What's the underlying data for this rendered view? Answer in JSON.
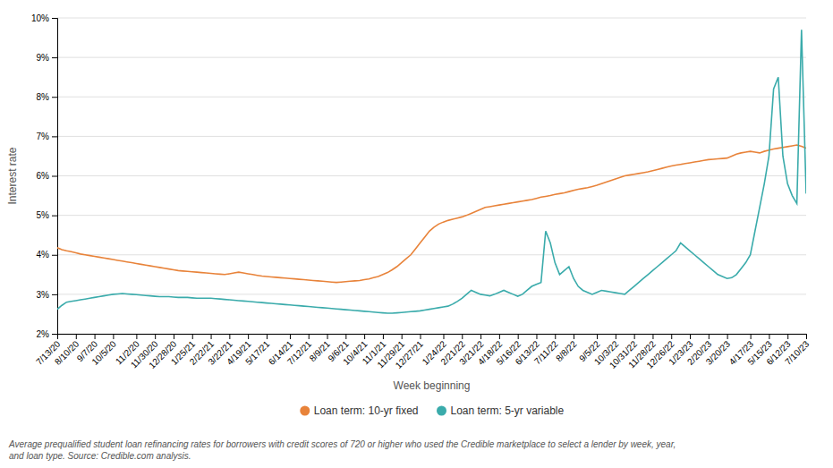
{
  "chart_data": {
    "type": "line",
    "x_label": "Week beginning",
    "y_label": "Interest rate",
    "annotations": [
      "Average prequalified student loan refinancing rates for borrowers with credit scores of 720 or higher who used the Credible marketplace to select a lender by week, year,\nand loan type. Source: Credible.com analysis."
    ],
    "categories": [
      "7/13/20",
      null,
      null,
      null,
      "8/10/20",
      null,
      null,
      null,
      "9/7/20",
      null,
      null,
      null,
      "10/5/20",
      null,
      null,
      null,
      null,
      "11/2/20",
      null,
      null,
      null,
      "11/30/20",
      null,
      null,
      null,
      "12/28/20",
      null,
      null,
      null,
      "1/25/21",
      null,
      null,
      null,
      "2/22/21",
      null,
      null,
      null,
      "3/22/21",
      null,
      null,
      null,
      "4/19/21",
      null,
      null,
      null,
      "5/17/21",
      null,
      null,
      null,
      null,
      "6/14/21",
      null,
      null,
      null,
      "7/12/21",
      null,
      null,
      null,
      "8/9/21",
      null,
      null,
      null,
      "9/6/21",
      null,
      null,
      null,
      "10/4/21",
      null,
      null,
      null,
      "11/1/21",
      null,
      null,
      null,
      "11/29/21",
      null,
      null,
      null,
      "12/27/21",
      null,
      null,
      null,
      null,
      "1/24/22",
      null,
      null,
      null,
      "2/21/22",
      null,
      null,
      null,
      "3/21/22",
      null,
      null,
      null,
      "4/18/22",
      null,
      null,
      null,
      "5/16/22",
      null,
      null,
      null,
      "6/13/22",
      null,
      null,
      null,
      "7/11/22",
      null,
      null,
      null,
      "8/8/22",
      null,
      null,
      null,
      null,
      "9/5/22",
      null,
      null,
      null,
      "10/3/22",
      null,
      null,
      null,
      "10/31/22",
      null,
      null,
      null,
      "11/28/22",
      null,
      null,
      null,
      "12/26/22",
      null,
      null,
      null,
      "1/23/23",
      null,
      null,
      null,
      "2/20/23",
      null,
      null,
      null,
      "3/20/23",
      null,
      null,
      null,
      null,
      "4/17/23",
      null,
      null,
      null,
      "5/15/23",
      null,
      null,
      null,
      "6/12/23",
      null,
      null,
      null,
      "7/10/23"
    ],
    "series": [
      {
        "name": "Loan term: 10-yr fixed",
        "color": "#e8833a",
        "values": [
          4.18,
          4.13,
          4.1,
          4.08,
          4.05,
          4.02,
          4.0,
          3.98,
          3.96,
          3.94,
          3.92,
          3.9,
          3.88,
          3.86,
          3.84,
          3.82,
          3.8,
          3.78,
          3.76,
          3.74,
          3.72,
          3.7,
          3.68,
          3.66,
          3.64,
          3.62,
          3.6,
          3.59,
          3.58,
          3.57,
          3.56,
          3.55,
          3.54,
          3.53,
          3.52,
          3.51,
          3.5,
          3.52,
          3.54,
          3.56,
          3.54,
          3.52,
          3.5,
          3.48,
          3.46,
          3.45,
          3.44,
          3.43,
          3.42,
          3.41,
          3.4,
          3.39,
          3.38,
          3.37,
          3.36,
          3.35,
          3.34,
          3.33,
          3.32,
          3.31,
          3.3,
          3.31,
          3.32,
          3.33,
          3.34,
          3.35,
          3.37,
          3.39,
          3.42,
          3.45,
          3.5,
          3.55,
          3.62,
          3.7,
          3.8,
          3.9,
          4.0,
          4.15,
          4.3,
          4.45,
          4.6,
          4.7,
          4.78,
          4.83,
          4.87,
          4.9,
          4.93,
          4.96,
          5.0,
          5.05,
          5.1,
          5.15,
          5.2,
          5.22,
          5.24,
          5.26,
          5.28,
          5.3,
          5.32,
          5.34,
          5.36,
          5.38,
          5.4,
          5.43,
          5.46,
          5.48,
          5.5,
          5.53,
          5.55,
          5.57,
          5.6,
          5.63,
          5.66,
          5.68,
          5.7,
          5.73,
          5.76,
          5.8,
          5.84,
          5.88,
          5.92,
          5.96,
          6.0,
          6.02,
          6.04,
          6.06,
          6.08,
          6.1,
          6.13,
          6.16,
          6.19,
          6.22,
          6.25,
          6.27,
          6.29,
          6.31,
          6.33,
          6.35,
          6.37,
          6.39,
          6.41,
          6.42,
          6.43,
          6.44,
          6.45,
          6.5,
          6.55,
          6.58,
          6.6,
          6.62,
          6.6,
          6.58,
          6.62,
          6.65,
          6.68,
          6.7,
          6.72,
          6.74,
          6.76,
          6.78,
          6.75,
          6.7
        ]
      },
      {
        "name": "Loan term: 5-yr variable",
        "color": "#3aabab",
        "values": [
          2.62,
          2.72,
          2.8,
          2.82,
          2.84,
          2.86,
          2.88,
          2.9,
          2.92,
          2.94,
          2.96,
          2.98,
          3.0,
          3.01,
          3.02,
          3.01,
          3.0,
          2.99,
          2.98,
          2.97,
          2.96,
          2.95,
          2.94,
          2.94,
          2.94,
          2.93,
          2.92,
          2.92,
          2.92,
          2.91,
          2.9,
          2.9,
          2.9,
          2.9,
          2.89,
          2.88,
          2.87,
          2.86,
          2.85,
          2.84,
          2.83,
          2.82,
          2.81,
          2.8,
          2.79,
          2.78,
          2.77,
          2.76,
          2.75,
          2.74,
          2.73,
          2.72,
          2.71,
          2.7,
          2.69,
          2.68,
          2.67,
          2.66,
          2.65,
          2.64,
          2.63,
          2.62,
          2.61,
          2.6,
          2.59,
          2.58,
          2.57,
          2.56,
          2.55,
          2.54,
          2.53,
          2.52,
          2.52,
          2.53,
          2.54,
          2.55,
          2.56,
          2.57,
          2.58,
          2.6,
          2.62,
          2.64,
          2.66,
          2.68,
          2.7,
          2.75,
          2.82,
          2.9,
          3.0,
          3.1,
          3.05,
          3.0,
          2.98,
          2.96,
          3.0,
          3.05,
          3.1,
          3.05,
          3.0,
          2.95,
          3.0,
          3.1,
          3.2,
          3.25,
          3.3,
          4.6,
          4.3,
          3.8,
          3.5,
          3.6,
          3.7,
          3.4,
          3.2,
          3.1,
          3.05,
          3.0,
          3.05,
          3.1,
          3.08,
          3.06,
          3.04,
          3.02,
          3.0,
          3.1,
          3.2,
          3.3,
          3.4,
          3.5,
          3.6,
          3.7,
          3.8,
          3.9,
          4.0,
          4.1,
          4.3,
          4.2,
          4.1,
          4.0,
          3.9,
          3.8,
          3.7,
          3.6,
          3.5,
          3.45,
          3.4,
          3.42,
          3.5,
          3.65,
          3.8,
          4.0,
          4.6,
          5.2,
          5.8,
          6.5,
          8.2,
          8.5,
          6.5,
          5.8,
          5.5,
          5.3,
          9.7,
          5.55
        ]
      }
    ],
    "ylim": [
      2,
      10
    ],
    "yticks": [
      {
        "value": 2,
        "label": "2%"
      },
      {
        "value": 3,
        "label": "3%"
      },
      {
        "value": 4,
        "label": "4%"
      },
      {
        "value": 5,
        "label": "5%"
      },
      {
        "value": 6,
        "label": "6%"
      },
      {
        "value": 7,
        "label": "7%"
      },
      {
        "value": 8,
        "label": "8%"
      },
      {
        "value": 9,
        "label": "9%"
      },
      {
        "value": 10,
        "label": "10%"
      }
    ],
    "grid": true,
    "legend": "bottom"
  }
}
